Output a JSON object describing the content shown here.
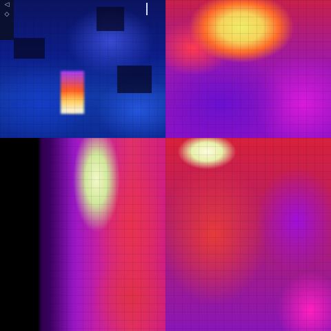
{
  "panels": [
    {
      "name": "top-left",
      "palette": "cold-blue"
    },
    {
      "name": "top-right",
      "palette": "iron-warm"
    },
    {
      "name": "bottom-left",
      "palette": "iron-warm"
    },
    {
      "name": "bottom-right",
      "palette": "iron-warm"
    }
  ],
  "hud": {
    "icon_top": "◁",
    "icon_bottom": "◇"
  },
  "colors": {
    "cold_base": "#0c1d8a",
    "hot_core": "#fff6c8",
    "warm_yellow": "#f0ef6a",
    "warm_red": "#e83050",
    "warm_magenta": "#c820a0",
    "warm_violet": "#8a10c8"
  }
}
